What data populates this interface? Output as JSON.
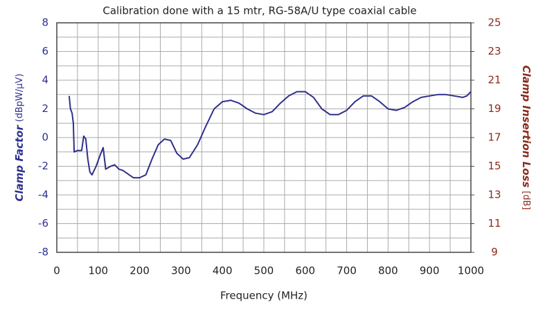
{
  "chart_data": {
    "type": "line",
    "title": "Calibration done with a 15 mtr, RG-58A/U type coaxial cable",
    "x_label": "Frequency (MHz)",
    "y_label": "Clamp Factor",
    "y_label_unit": "(dBpW/µV)",
    "y2_label": "Clamp Insertion Loss",
    "y2_label_unit": "[dB]",
    "xlim": [
      0,
      1000
    ],
    "xticks": [
      0,
      100,
      200,
      300,
      400,
      500,
      600,
      700,
      800,
      900,
      1000
    ],
    "ylim": [
      -8,
      8
    ],
    "yticks": [
      -8,
      -6,
      -4,
      -2,
      0,
      2,
      4,
      6,
      8
    ],
    "y2lim": [
      9,
      25
    ],
    "y2ticks": [
      9,
      11,
      13,
      15,
      17,
      19,
      21,
      23,
      25
    ],
    "grid": true,
    "series": [
      {
        "color": "#2e2e8c",
        "x": [
          30,
          33,
          37,
          40,
          42,
          50,
          60,
          65,
          70,
          75,
          80,
          85,
          95,
          105,
          112,
          118,
          130,
          140,
          150,
          160,
          175,
          185,
          200,
          215,
          230,
          245,
          260,
          275,
          290,
          305,
          320,
          340,
          360,
          380,
          400,
          420,
          440,
          460,
          480,
          500,
          520,
          540,
          560,
          580,
          600,
          620,
          640,
          660,
          680,
          700,
          720,
          740,
          760,
          780,
          800,
          820,
          840,
          860,
          880,
          900,
          920,
          940,
          960,
          980,
          990,
          1000
        ],
        "values": [
          2.9,
          2.0,
          1.7,
          1.0,
          -1.0,
          -0.9,
          -0.9,
          0.1,
          -0.1,
          -1.5,
          -2.4,
          -2.6,
          -2.0,
          -1.2,
          -0.7,
          -2.2,
          -2.0,
          -1.9,
          -2.2,
          -2.3,
          -2.6,
          -2.8,
          -2.8,
          -2.6,
          -1.5,
          -0.5,
          -0.1,
          -0.2,
          -1.1,
          -1.5,
          -1.4,
          -0.5,
          0.8,
          2.0,
          2.5,
          2.6,
          2.4,
          2.0,
          1.7,
          1.6,
          1.8,
          2.4,
          2.9,
          3.2,
          3.2,
          2.8,
          2.0,
          1.6,
          1.6,
          1.9,
          2.5,
          2.9,
          2.9,
          2.5,
          2.0,
          1.9,
          2.1,
          2.5,
          2.8,
          2.9,
          3.0,
          3.0,
          2.9,
          2.8,
          2.9,
          3.2
        ]
      }
    ]
  }
}
